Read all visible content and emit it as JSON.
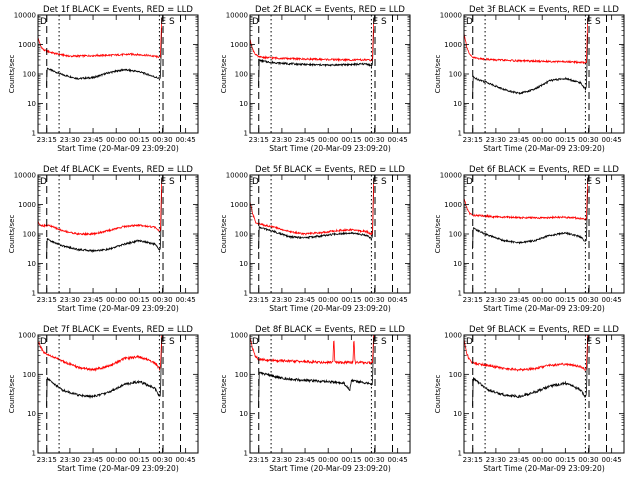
{
  "figure": {
    "x_ticks": [
      "23:15",
      "23:30",
      "23:45",
      "00:00",
      "00:15",
      "00:30",
      "00:45"
    ],
    "y_ticks": [
      "1",
      "10",
      "100",
      "1000",
      "10000"
    ],
    "x_label": "Start Time (20-Mar-09 23:09:20)",
    "y_label": "Counts/sec",
    "colors": {
      "events": "#000000",
      "lld": "#ff0000"
    }
  },
  "chart_data": [
    {
      "type": "line",
      "panel": "1f",
      "title": "Det 1f BLACK = Events, RED = LLD",
      "markers": [
        "D",
        "E S"
      ],
      "ylim": [
        1,
        10000
      ],
      "log_y": true,
      "xlim": [
        "23:09:20",
        "00:53:00"
      ],
      "series": [
        {
          "name": "Events",
          "color": "#000000",
          "x": [
            "23:14:50",
            "23:15:20",
            "23:17",
            "23:25",
            "23:35",
            "23:45",
            "23:55",
            "00:05",
            "00:15",
            "00:25",
            "00:28",
            "00:28:40",
            "00:29:30"
          ],
          "y": [
            40,
            160,
            140,
            95,
            70,
            75,
            110,
            140,
            120,
            80,
            70,
            75,
            3500
          ]
        },
        {
          "name": "LLD",
          "color": "#ff0000",
          "x": [
            "23:09:20",
            "23:11",
            "23:13",
            "23:15",
            "23:20",
            "23:30",
            "23:45",
            "00:00",
            "00:10",
            "00:20",
            "00:28",
            "00:28:40",
            "00:29:30"
          ],
          "y": [
            1700,
            900,
            650,
            600,
            500,
            400,
            420,
            440,
            470,
            430,
            380,
            400,
            8000
          ]
        }
      ],
      "vlines": {
        "dashed": [
          "23:15",
          "00:30:20",
          "00:41:40"
        ],
        "dotted": [
          "23:23",
          "00:28"
        ]
      }
    },
    {
      "type": "line",
      "panel": "2f",
      "title": "Det 2f BLACK = Events, RED = LLD",
      "markers": [
        "D",
        "E S"
      ],
      "ylim": [
        1,
        10000
      ],
      "log_y": true,
      "xlim": [
        "23:09:20",
        "00:53:00"
      ],
      "series": [
        {
          "name": "Events",
          "color": "#000000",
          "x": [
            "23:14:50",
            "23:15:20",
            "23:20",
            "23:30",
            "23:45",
            "00:00",
            "00:15",
            "00:25",
            "00:28",
            "00:28:40",
            "00:29:30"
          ],
          "y": [
            40,
            290,
            260,
            230,
            210,
            200,
            210,
            220,
            190,
            200,
            3200
          ]
        },
        {
          "name": "LLD",
          "color": "#ff0000",
          "x": [
            "23:09:20",
            "23:11",
            "23:13",
            "23:15",
            "23:20",
            "23:30",
            "23:45",
            "00:00",
            "00:15",
            "00:25",
            "00:28",
            "00:28:40",
            "00:29:30"
          ],
          "y": [
            1500,
            700,
            450,
            380,
            360,
            340,
            320,
            310,
            300,
            300,
            290,
            300,
            7000
          ]
        }
      ],
      "vlines": {
        "dashed": [
          "23:15",
          "00:30:20",
          "00:41:40"
        ],
        "dotted": [
          "23:23",
          "00:28"
        ]
      }
    },
    {
      "type": "line",
      "panel": "3f",
      "title": "Det 3f BLACK = Events, RED = LLD",
      "markers": [
        "D",
        "E S"
      ],
      "ylim": [
        1,
        10000
      ],
      "log_y": true,
      "xlim": [
        "23:09:20",
        "00:53:00"
      ],
      "series": [
        {
          "name": "Events",
          "color": "#000000",
          "x": [
            "23:14:50",
            "23:15:20",
            "23:17",
            "23:25",
            "23:35",
            "23:45",
            "23:55",
            "00:05",
            "00:15",
            "00:25",
            "00:28",
            "00:28:40",
            "00:29:30"
          ],
          "y": [
            15,
            80,
            70,
            50,
            30,
            22,
            30,
            60,
            70,
            50,
            30,
            35,
            2500
          ]
        },
        {
          "name": "LLD",
          "color": "#ff0000",
          "x": [
            "23:09:20",
            "23:11",
            "23:13",
            "23:15",
            "23:20",
            "23:30",
            "23:45",
            "00:00",
            "00:15",
            "00:25",
            "00:28",
            "00:28:40",
            "00:29:30"
          ],
          "y": [
            2500,
            900,
            450,
            360,
            330,
            300,
            280,
            270,
            260,
            250,
            240,
            250,
            8000
          ]
        }
      ],
      "vlines": {
        "dashed": [
          "23:15",
          "00:30:20",
          "00:41:40"
        ],
        "dotted": [
          "23:23",
          "00:28"
        ]
      }
    },
    {
      "type": "line",
      "panel": "4f",
      "title": "Det 4f BLACK = Events, RED = LLD",
      "markers": [
        "D",
        "E S"
      ],
      "ylim": [
        1,
        10000
      ],
      "log_y": true,
      "xlim": [
        "23:09:20",
        "00:53:00"
      ],
      "series": [
        {
          "name": "Events",
          "color": "#000000",
          "x": [
            "23:14:50",
            "23:15:20",
            "23:17",
            "23:25",
            "23:35",
            "23:45",
            "23:55",
            "00:05",
            "00:15",
            "00:25",
            "00:28",
            "00:28:40",
            "00:29:30"
          ],
          "y": [
            15,
            70,
            60,
            40,
            30,
            27,
            30,
            45,
            60,
            45,
            30,
            35,
            3000
          ]
        },
        {
          "name": "LLD",
          "color": "#ff0000",
          "x": [
            "23:09:20",
            "23:11",
            "23:13",
            "23:15",
            "23:17",
            "23:25",
            "23:35",
            "23:45",
            "23:55",
            "00:05",
            "00:15",
            "00:25",
            "00:28",
            "00:28:40",
            "00:29:30"
          ],
          "y": [
            250,
            200,
            190,
            200,
            190,
            130,
            100,
            100,
            130,
            180,
            200,
            170,
            120,
            130,
            7000
          ]
        }
      ],
      "vlines": {
        "dashed": [
          "23:15",
          "00:30:20",
          "00:41:40"
        ],
        "dotted": [
          "23:23",
          "00:28"
        ]
      }
    },
    {
      "type": "line",
      "panel": "5f",
      "title": "Det 5f BLACK = Events, RED = LLD",
      "markers": [
        "D",
        "E S"
      ],
      "ylim": [
        1,
        10000
      ],
      "log_y": true,
      "xlim": [
        "23:09:20",
        "00:53:00"
      ],
      "series": [
        {
          "name": "Events",
          "color": "#000000",
          "x": [
            "23:14:50",
            "23:15:20",
            "23:17",
            "23:25",
            "23:35",
            "23:45",
            "23:55",
            "00:05",
            "00:15",
            "00:25",
            "00:28",
            "00:28:40",
            "00:29:30"
          ],
          "y": [
            30,
            170,
            160,
            120,
            80,
            75,
            85,
            100,
            110,
            90,
            70,
            75,
            4000
          ]
        },
        {
          "name": "LLD",
          "color": "#ff0000",
          "x": [
            "23:09:20",
            "23:11",
            "23:13",
            "23:15",
            "23:17",
            "23:25",
            "23:35",
            "23:45",
            "23:55",
            "00:05",
            "00:15",
            "00:25",
            "00:28",
            "00:28:40",
            "00:29:30"
          ],
          "y": [
            1200,
            500,
            250,
            220,
            210,
            170,
            120,
            100,
            110,
            130,
            140,
            120,
            100,
            110,
            8000
          ]
        }
      ],
      "vlines": {
        "dashed": [
          "23:15",
          "00:30:20",
          "00:41:40"
        ],
        "dotted": [
          "23:23",
          "00:28"
        ]
      }
    },
    {
      "type": "line",
      "panel": "6f",
      "title": "Det 6f BLACK = Events, RED = LLD",
      "markers": [
        "D",
        "E S"
      ],
      "ylim": [
        1,
        10000
      ],
      "log_y": true,
      "xlim": [
        "23:09:20",
        "00:53:00"
      ],
      "series": [
        {
          "name": "Events",
          "color": "#000000",
          "x": [
            "23:14:50",
            "23:15:20",
            "23:17",
            "23:25",
            "23:35",
            "23:45",
            "23:55",
            "00:05",
            "00:15",
            "00:25",
            "00:28",
            "00:28:40",
            "00:29:30"
          ],
          "y": [
            30,
            160,
            140,
            90,
            60,
            50,
            60,
            90,
            110,
            80,
            55,
            60,
            3500
          ]
        },
        {
          "name": "LLD",
          "color": "#ff0000",
          "x": [
            "23:09:20",
            "23:11",
            "23:13",
            "23:15",
            "23:20",
            "23:30",
            "23:45",
            "00:00",
            "00:10",
            "00:20",
            "00:28",
            "00:28:40",
            "00:29:30"
          ],
          "y": [
            1600,
            800,
            500,
            430,
            420,
            380,
            360,
            350,
            370,
            360,
            320,
            330,
            7500
          ]
        }
      ],
      "vlines": {
        "dashed": [
          "23:15",
          "00:30:20",
          "00:41:40"
        ],
        "dotted": [
          "23:23",
          "00:28"
        ]
      }
    },
    {
      "type": "line",
      "panel": "7f",
      "title": "Det 7f BLACK = Events, RED = LLD",
      "markers": [
        "D",
        "E S"
      ],
      "ylim": [
        1,
        1000
      ],
      "log_y": true,
      "xlim": [
        "23:09:20",
        "00:53:00"
      ],
      "series": [
        {
          "name": "Events",
          "color": "#000000",
          "x": [
            "23:14:50",
            "23:15:20",
            "23:17",
            "23:25",
            "23:35",
            "23:45",
            "23:55",
            "00:05",
            "00:15",
            "00:25",
            "00:28",
            "00:28:40",
            "00:29:30"
          ],
          "y": [
            15,
            80,
            70,
            40,
            30,
            27,
            35,
            55,
            65,
            45,
            28,
            30,
            900
          ]
        },
        {
          "name": "LLD",
          "color": "#ff0000",
          "x": [
            "23:09:20",
            "23:11",
            "23:13",
            "23:15",
            "23:17",
            "23:25",
            "23:35",
            "23:45",
            "23:55",
            "00:05",
            "00:15",
            "00:25",
            "00:28",
            "00:28:40",
            "00:29:30"
          ],
          "y": [
            700,
            500,
            350,
            320,
            300,
            220,
            150,
            130,
            160,
            250,
            280,
            200,
            140,
            150,
            1000
          ]
        }
      ],
      "vlines": {
        "dashed": [
          "23:15",
          "00:30:20",
          "00:41:40"
        ],
        "dotted": [
          "23:23",
          "00:28"
        ]
      }
    },
    {
      "type": "line",
      "panel": "8f",
      "title": "Det 8f BLACK = Events, RED = LLD",
      "markers": [
        "D",
        "E S"
      ],
      "ylim": [
        1,
        1000
      ],
      "log_y": true,
      "xlim": [
        "23:09:20",
        "00:53:00"
      ],
      "series": [
        {
          "name": "Events",
          "color": "#000000",
          "x": [
            "23:14:50",
            "23:15:20",
            "23:20",
            "23:30",
            "23:45",
            "00:00",
            "00:10",
            "00:14",
            "00:15",
            "00:25",
            "00:28",
            "00:28:40",
            "00:29:30"
          ],
          "y": [
            15,
            110,
            100,
            80,
            70,
            65,
            60,
            40,
            70,
            60,
            55,
            60,
            900
          ]
        },
        {
          "name": "LLD",
          "color": "#ff0000",
          "x": [
            "23:09:20",
            "23:11",
            "23:13",
            "23:15",
            "23:20",
            "23:30",
            "23:45",
            "00:00",
            "00:03",
            "00:03:40",
            "00:04:20",
            "00:10",
            "00:16",
            "00:16:40",
            "00:17:20",
            "00:25",
            "00:28",
            "00:28:40",
            "00:29:30"
          ],
          "y": [
            900,
            450,
            280,
            240,
            230,
            220,
            210,
            200,
            200,
            900,
            200,
            200,
            200,
            900,
            200,
            200,
            190,
            200,
            1000
          ]
        }
      ],
      "vlines": {
        "dashed": [
          "23:15",
          "00:30:20",
          "00:41:40"
        ],
        "dotted": [
          "23:23",
          "00:28"
        ]
      }
    },
    {
      "type": "line",
      "panel": "9f",
      "title": "Det 9f BLACK = Events, RED = LLD",
      "markers": [
        "D",
        "E S"
      ],
      "ylim": [
        1,
        1000
      ],
      "log_y": true,
      "xlim": [
        "23:09:20",
        "00:53:00"
      ],
      "series": [
        {
          "name": "Events",
          "color": "#000000",
          "x": [
            "23:14:50",
            "23:15:20",
            "23:17",
            "23:25",
            "23:35",
            "23:45",
            "23:55",
            "00:05",
            "00:15",
            "00:25",
            "00:28",
            "00:28:40",
            "00:29:30"
          ],
          "y": [
            15,
            80,
            70,
            40,
            30,
            27,
            35,
            50,
            60,
            40,
            27,
            30,
            900
          ]
        },
        {
          "name": "LLD",
          "color": "#ff0000",
          "x": [
            "23:09:20",
            "23:11",
            "23:13",
            "23:15",
            "23:17",
            "23:25",
            "23:35",
            "23:45",
            "23:55",
            "00:05",
            "00:15",
            "00:25",
            "00:28",
            "00:28:40",
            "00:29:30"
          ],
          "y": [
            800,
            350,
            230,
            200,
            190,
            170,
            140,
            130,
            140,
            170,
            180,
            160,
            130,
            140,
            1000
          ]
        }
      ],
      "vlines": {
        "dashed": [
          "23:15",
          "00:30:20",
          "00:41:40"
        ],
        "dotted": [
          "23:23",
          "00:28"
        ]
      }
    }
  ]
}
